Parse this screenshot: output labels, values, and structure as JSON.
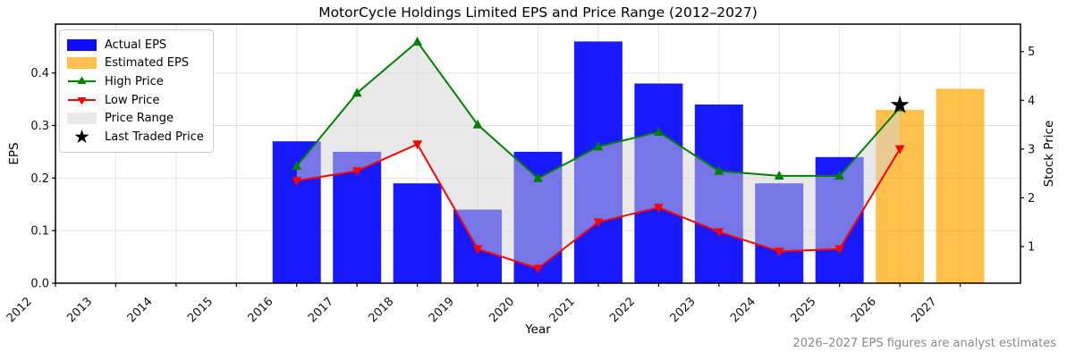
{
  "chart_data": {
    "type": "combo: EPS bars (left axis) + high/low price lines with shaded range (right axis)",
    "title": "MotorCycle Holdings Limited EPS and Price Range (2012–2027)",
    "annotation": "2026–2027 EPS figures are analyst estimates",
    "x_years": [
      2012,
      2013,
      2014,
      2015,
      2016,
      2017,
      2018,
      2019,
      2020,
      2021,
      2022,
      2023,
      2024,
      2025,
      2026,
      2027
    ],
    "x_axis": {
      "label": "Year",
      "lim": [
        2012,
        2028
      ]
    },
    "eps_axis": {
      "label": "EPS",
      "ticks": [
        0.0,
        0.1,
        0.2,
        0.3,
        0.4
      ],
      "lim": [
        0,
        0.493
      ]
    },
    "price_axis": {
      "label": "Stock Price",
      "ticks": [
        1,
        2,
        3,
        4,
        5
      ],
      "lim": [
        0.248,
        5.563
      ]
    },
    "grid": true,
    "series": {
      "actual_eps": {
        "name": "Actual EPS",
        "type": "bar",
        "axis": "left",
        "years": [
          2016,
          2017,
          2018,
          2019,
          2020,
          2021,
          2022,
          2023,
          2024,
          2025
        ],
        "values": [
          0.27,
          0.25,
          0.19,
          0.14,
          0.25,
          0.46,
          0.38,
          0.34,
          0.19,
          0.24
        ]
      },
      "estimated_eps": {
        "name": "Estimated EPS",
        "type": "bar",
        "axis": "left",
        "years": [
          2026,
          2027
        ],
        "values": [
          0.33,
          0.37
        ]
      },
      "high_price": {
        "name": "High Price",
        "type": "line",
        "marker": "triangle-up",
        "axis": "right",
        "years": [
          2016,
          2017,
          2018,
          2019,
          2020,
          2021,
          2022,
          2023,
          2024,
          2025,
          2026
        ],
        "values": [
          2.65,
          4.15,
          5.2,
          3.5,
          2.4,
          3.05,
          3.35,
          2.55,
          2.45,
          2.45,
          3.85
        ]
      },
      "low_price": {
        "name": "Low Price",
        "type": "line",
        "marker": "triangle-down",
        "axis": "right",
        "years": [
          2016,
          2017,
          2018,
          2019,
          2020,
          2021,
          2022,
          2023,
          2024,
          2025,
          2026
        ],
        "values": [
          2.35,
          2.55,
          3.1,
          0.95,
          0.55,
          1.5,
          1.8,
          1.3,
          0.9,
          0.95,
          3.0
        ]
      },
      "price_range": {
        "name": "Price Range",
        "type": "area-between",
        "axis": "right",
        "between": [
          "high_price",
          "low_price"
        ]
      },
      "last_traded": {
        "name": "Last Traded Price",
        "type": "point",
        "marker": "star",
        "axis": "right",
        "year": 2026,
        "price": 3.9
      }
    },
    "colors": {
      "actual_eps": "#0000ff",
      "estimated_eps": "#ffa500",
      "high_price": "#008000",
      "low_price": "#ff0000",
      "price_range": "#d3d3d3",
      "last_traded": "#000000",
      "grid": "#e4e4e4",
      "spine": "#000000",
      "footnote_text": "#8a8a8a"
    },
    "legend_position": "upper-left"
  },
  "legend": {
    "items": [
      {
        "label": "Actual EPS",
        "swatch": "blue-rect"
      },
      {
        "label": "Estimated EPS",
        "swatch": "orange-rect"
      },
      {
        "label": "High Price",
        "swatch": "green-line-triangle-up"
      },
      {
        "label": "Low Price",
        "swatch": "red-line-triangle-down"
      },
      {
        "label": "Price Range",
        "swatch": "gray-rect"
      },
      {
        "label": "Last Traded Price",
        "swatch": "black-star"
      }
    ]
  }
}
